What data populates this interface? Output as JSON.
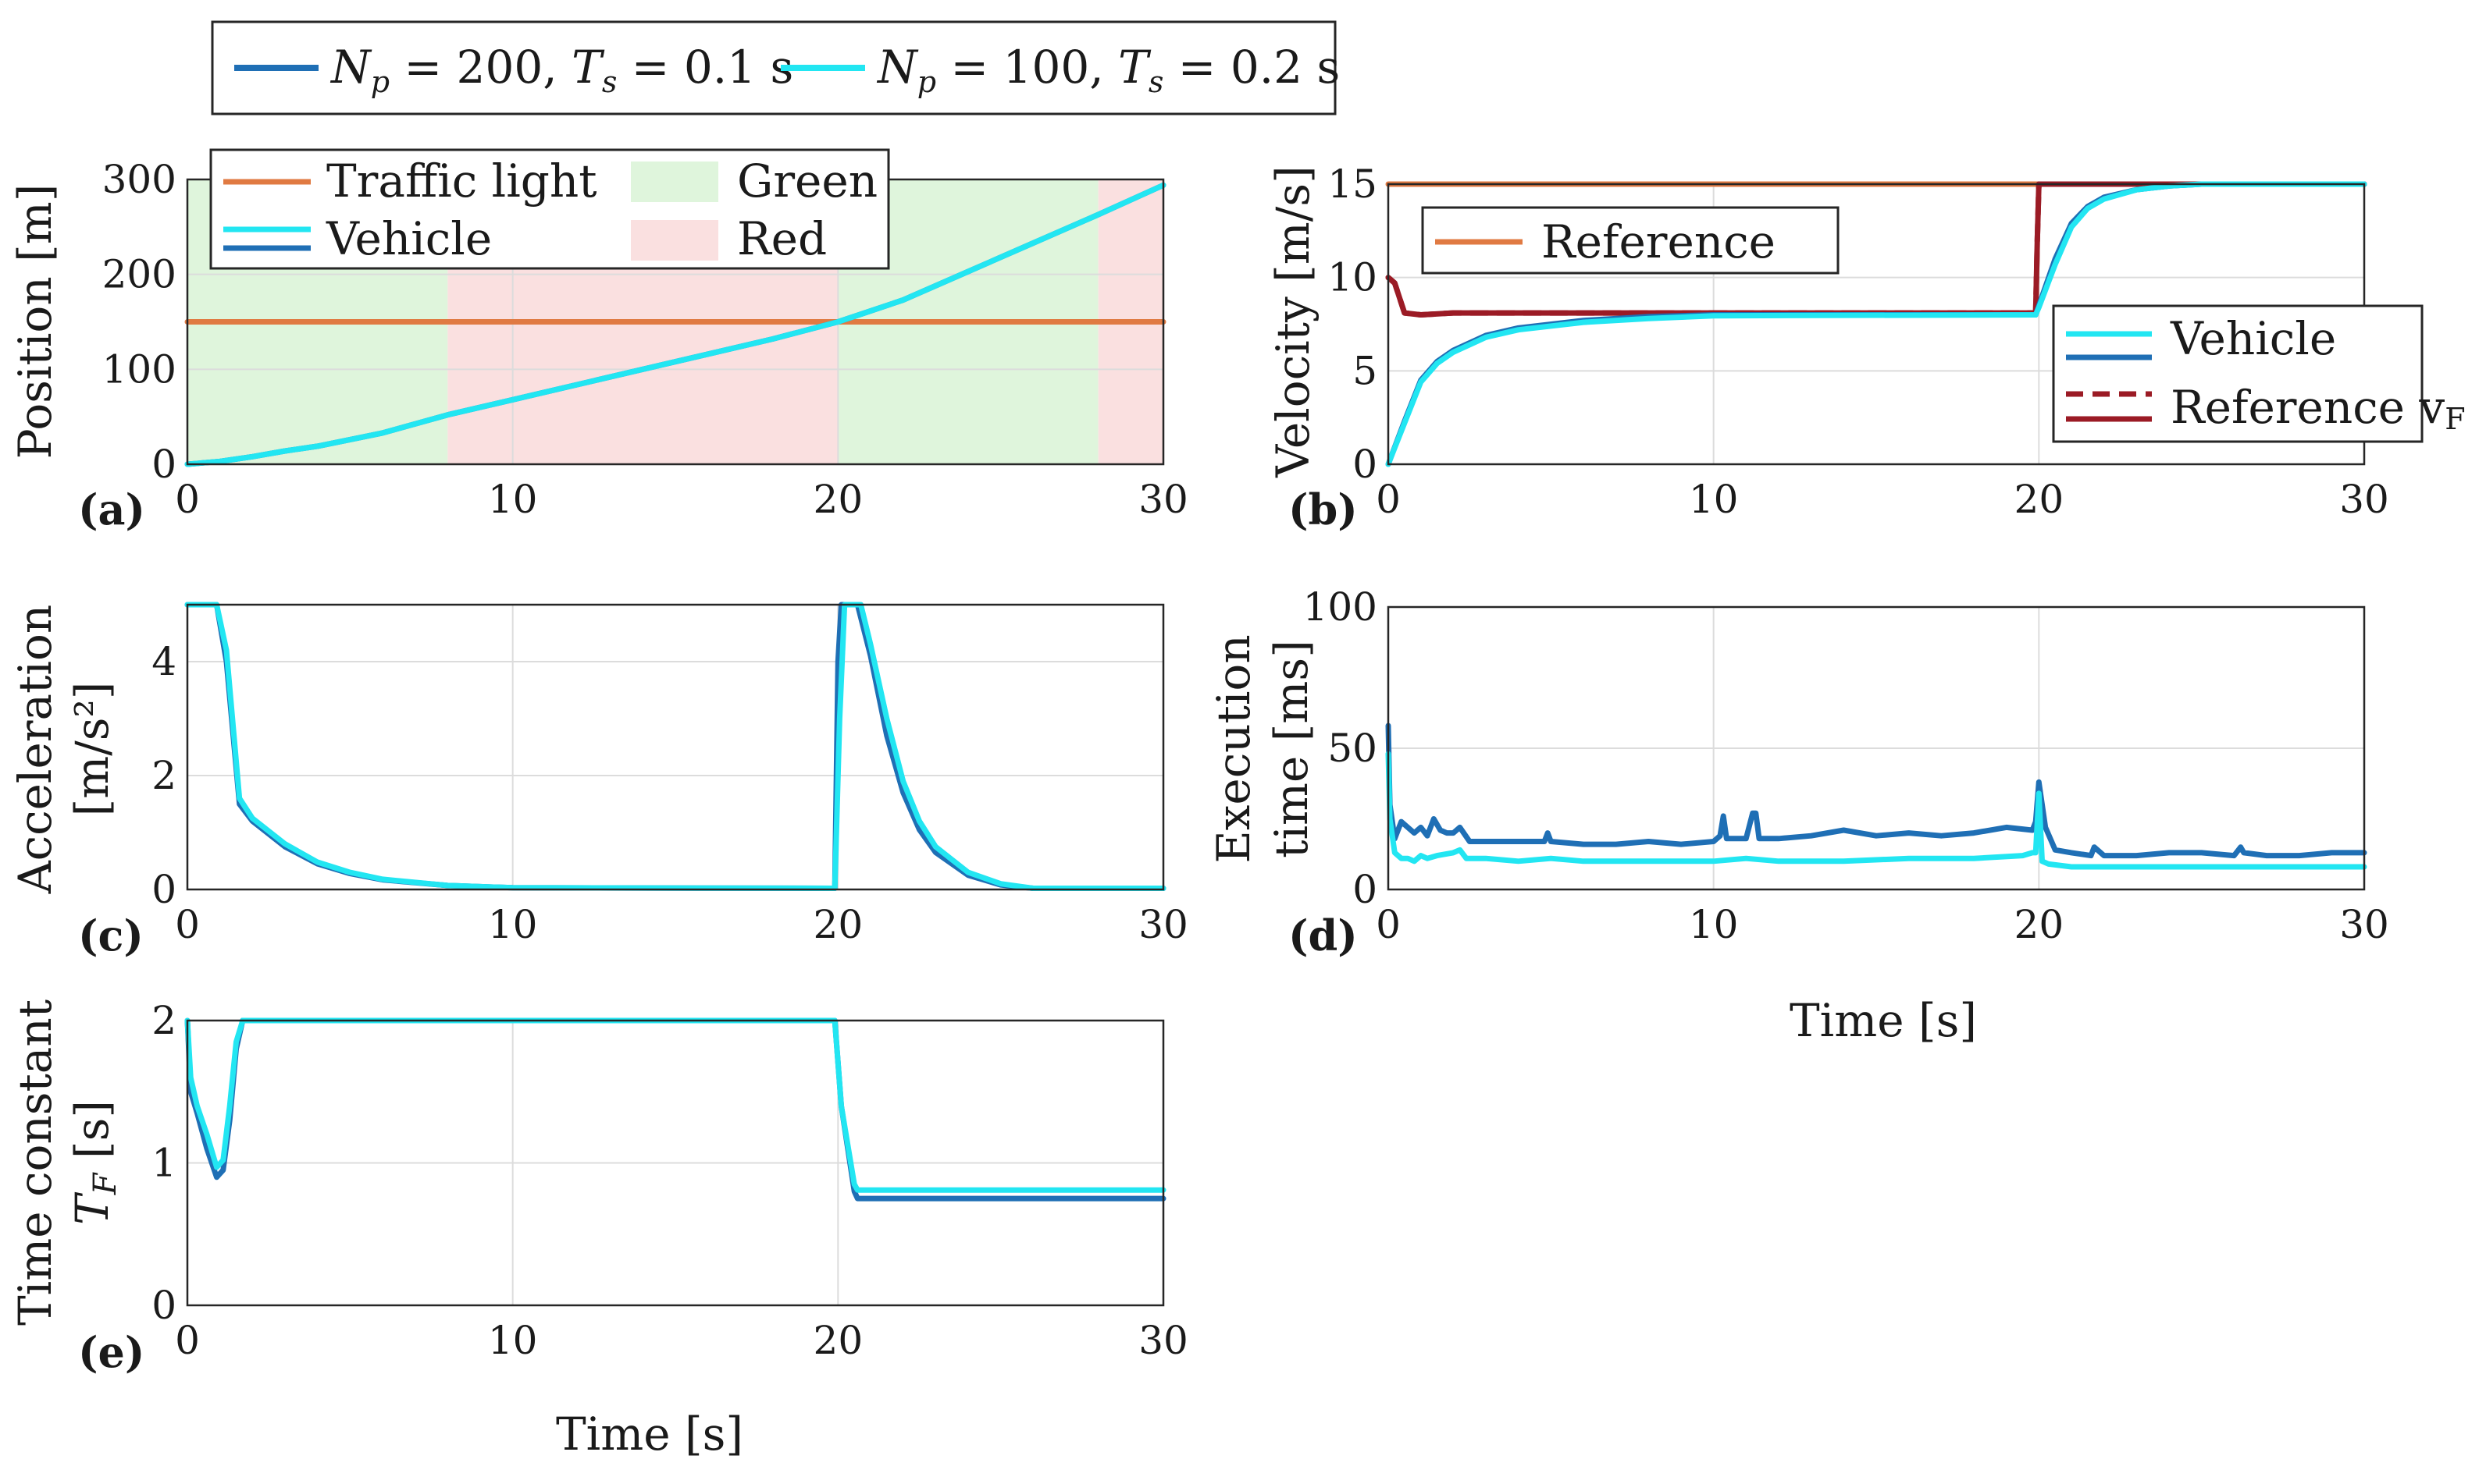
{
  "colors": {
    "np200": "#1f6fb5",
    "np100": "#22e6f2",
    "traffic_light": "#e07a42",
    "green_band": "#dff5dc",
    "red_band": "#fae0e0",
    "reference_vf": "#9b1b25"
  },
  "top_legend": {
    "entries": [
      {
        "label": "Np = 200, Ts = 0.1 s",
        "N": "N",
        "p": "p",
        "eq1": " = 200, ",
        "T": "T",
        "s": "s",
        "eq2": " = 0.1 s",
        "color_key": "np200"
      },
      {
        "label": "Np = 100, Ts = 0.2 s",
        "N": "N",
        "p": "p",
        "eq1": " = 100, ",
        "T": "T",
        "s": "s",
        "eq2": " = 0.2 s",
        "color_key": "np100"
      }
    ]
  },
  "chart_data": [
    {
      "id": "a",
      "panel_label": "(a)",
      "type": "line",
      "ylabel": "Position [m]",
      "xlim": [
        0,
        30
      ],
      "ylim": [
        0,
        300
      ],
      "xticks": [
        "0",
        "10",
        "20",
        "30"
      ],
      "yticks": [
        "0",
        "100",
        "200",
        "300"
      ],
      "bands": [
        {
          "from": 0,
          "to": 8,
          "color_key": "green_band"
        },
        {
          "from": 8,
          "to": 20,
          "color_key": "red_band"
        },
        {
          "from": 20,
          "to": 28,
          "color_key": "green_band"
        },
        {
          "from": 28,
          "to": 30,
          "color_key": "red_band"
        }
      ],
      "legend": {
        "traffic_light": "Traffic light",
        "vehicle": "Vehicle",
        "green": "Green",
        "red": "Red"
      },
      "series": [
        {
          "name": "Traffic light",
          "color_key": "traffic_light",
          "x": [
            0,
            30
          ],
          "y": [
            150,
            150
          ]
        },
        {
          "name": "Vehicle (Np=200)",
          "color_key": "np200",
          "x": [
            0,
            1,
            2,
            3,
            4,
            6,
            8,
            10,
            14,
            18,
            20,
            22,
            24,
            26,
            28,
            30
          ],
          "y": [
            0,
            3,
            8,
            14,
            19,
            33,
            52,
            68,
            100,
            132,
            150,
            173,
            203,
            233,
            263,
            294
          ]
        },
        {
          "name": "Vehicle (Np=100)",
          "color_key": "np100",
          "x": [
            0,
            1,
            2,
            3,
            4,
            6,
            8,
            10,
            14,
            18,
            20,
            22,
            24,
            26,
            28,
            30
          ],
          "y": [
            0,
            3,
            8,
            14,
            19,
            33,
            52,
            68,
            100,
            132,
            150,
            173,
            203,
            233,
            263,
            294
          ]
        }
      ]
    },
    {
      "id": "b",
      "panel_label": "(b)",
      "type": "line",
      "ylabel": "Velocity [m/s]",
      "xlim": [
        0,
        30
      ],
      "ylim": [
        0,
        15
      ],
      "xticks": [
        "0",
        "10",
        "20",
        "30"
      ],
      "yticks": [
        "0",
        "5",
        "10",
        "15"
      ],
      "legend": {
        "reference": "Reference",
        "vehicle": "Vehicle",
        "reference_vf": "Reference v",
        "reference_vf_sub": "F"
      },
      "series": [
        {
          "name": "Reference",
          "color_key": "traffic_light",
          "x": [
            0,
            30
          ],
          "y": [
            15,
            15
          ]
        },
        {
          "name": "Reference vF (Np=100)",
          "color_key": "reference_vf",
          "dashed": true,
          "x": [
            0,
            0.2,
            0.5,
            1,
            2,
            5,
            10,
            15,
            19.9,
            19.95,
            20,
            30
          ],
          "y": [
            10,
            9.7,
            8.1,
            8.0,
            8.1,
            8.1,
            8.1,
            8.1,
            8.1,
            12,
            15,
            15
          ]
        },
        {
          "name": "Reference vF (Np=200)",
          "color_key": "reference_vf",
          "x": [
            0,
            0.2,
            0.5,
            1,
            2,
            5,
            10,
            15,
            19.9,
            19.95,
            20,
            30
          ],
          "y": [
            10,
            9.7,
            8.1,
            8.0,
            8.1,
            8.1,
            8.1,
            8.1,
            8.1,
            12,
            15,
            15
          ]
        },
        {
          "name": "Vehicle (Np=200)",
          "color_key": "np200",
          "x": [
            0,
            0.5,
            1,
            1.5,
            2,
            3,
            4,
            6,
            8,
            10,
            19.9,
            20,
            20.5,
            21,
            21.5,
            22,
            23,
            24,
            25,
            30
          ],
          "y": [
            0,
            2.3,
            4.5,
            5.5,
            6.1,
            6.9,
            7.3,
            7.7,
            7.9,
            8.0,
            8.0,
            8.5,
            11.0,
            12.9,
            13.8,
            14.3,
            14.7,
            14.9,
            15.0,
            15.0
          ]
        },
        {
          "name": "Vehicle (Np=100)",
          "color_key": "np100",
          "x": [
            0,
            0.5,
            1,
            1.5,
            2,
            3,
            4,
            6,
            8,
            10,
            19.9,
            20,
            20.5,
            21,
            21.5,
            22,
            23,
            24,
            25,
            30
          ],
          "y": [
            0,
            2.2,
            4.4,
            5.4,
            6.0,
            6.8,
            7.2,
            7.6,
            7.8,
            7.95,
            8.0,
            8.4,
            10.7,
            12.7,
            13.7,
            14.2,
            14.7,
            14.9,
            15.0,
            15.0
          ]
        }
      ]
    },
    {
      "id": "c",
      "panel_label": "(c)",
      "type": "line",
      "ylabel_lines": [
        "Acceleration",
        "[m/s²]"
      ],
      "xlim": [
        0,
        30
      ],
      "ylim": [
        0,
        5
      ],
      "xticks": [
        "0",
        "10",
        "20",
        "30"
      ],
      "yticks": [
        "0",
        "2",
        "4"
      ],
      "series": [
        {
          "name": "Np=200",
          "color_key": "np200",
          "x": [
            0,
            0.9,
            1.2,
            1.6,
            2,
            3,
            4,
            5,
            6,
            8,
            10,
            19.9,
            20,
            20.1,
            20.6,
            21,
            21.5,
            22,
            22.5,
            23,
            24,
            25,
            26,
            30
          ],
          "y": [
            5,
            5,
            4.0,
            1.5,
            1.2,
            0.75,
            0.45,
            0.28,
            0.17,
            0.07,
            0.03,
            0.02,
            4.0,
            5,
            5,
            4.1,
            2.7,
            1.7,
            1.05,
            0.65,
            0.25,
            0.08,
            0.02,
            0.02
          ]
        },
        {
          "name": "Np=100",
          "color_key": "np100",
          "x": [
            0,
            0.9,
            1.2,
            1.6,
            2,
            3,
            4,
            5,
            6,
            8,
            10,
            19.9,
            20.05,
            20.2,
            20.7,
            21,
            21.5,
            22,
            22.5,
            23,
            24,
            25,
            26,
            30
          ],
          "y": [
            5,
            5,
            4.2,
            1.6,
            1.25,
            0.8,
            0.48,
            0.3,
            0.18,
            0.07,
            0.03,
            0.02,
            3.0,
            5,
            5,
            4.3,
            3.0,
            1.9,
            1.2,
            0.75,
            0.3,
            0.1,
            0.02,
            0.02
          ]
        }
      ]
    },
    {
      "id": "d",
      "panel_label": "(d)",
      "type": "line",
      "ylabel_lines": [
        "Execution",
        "time [ms]"
      ],
      "xlabel": "Time [s]",
      "xlim": [
        0,
        30
      ],
      "ylim": [
        0,
        100
      ],
      "xticks": [
        "0",
        "10",
        "20",
        "30"
      ],
      "yticks": [
        "0",
        "50",
        "100"
      ],
      "series": [
        {
          "name": "Np=200",
          "color_key": "np200",
          "x": [
            0,
            0.05,
            0.2,
            0.4,
            0.6,
            0.8,
            1.0,
            1.2,
            1.4,
            1.6,
            1.8,
            2.0,
            2.2,
            2.5,
            3,
            4,
            4.8,
            4.9,
            5,
            6,
            7,
            8,
            9,
            10,
            10.2,
            10.3,
            10.4,
            11,
            11.2,
            11.3,
            11.4,
            12,
            13,
            14,
            15,
            16,
            17,
            18,
            19,
            19.8,
            19.9,
            20.0,
            20.2,
            20.5,
            21,
            21.6,
            21.7,
            22,
            23,
            24,
            25,
            26,
            26.2,
            26.3,
            27,
            28,
            29,
            30
          ],
          "y": [
            58,
            30,
            18,
            24,
            22,
            20,
            22,
            19,
            25,
            21,
            20,
            20,
            22,
            17,
            17,
            17,
            17,
            20,
            17,
            16,
            16,
            17,
            16,
            17,
            19,
            26,
            18,
            18,
            27,
            27,
            18,
            18,
            19,
            21,
            19,
            20,
            19,
            20,
            22,
            21,
            24,
            38,
            22,
            14,
            13,
            12,
            15,
            12,
            12,
            13,
            13,
            12,
            15,
            13,
            12,
            12,
            13,
            13
          ]
        },
        {
          "name": "Np=100",
          "color_key": "np100",
          "x": [
            0,
            0.05,
            0.2,
            0.4,
            0.6,
            0.8,
            1,
            1.2,
            1.5,
            2,
            2.2,
            2.4,
            3,
            4,
            5,
            6,
            8,
            10,
            11,
            12,
            14,
            16,
            18,
            19.5,
            19.8,
            19.9,
            20.0,
            20.1,
            20.3,
            21,
            22,
            23,
            24,
            26,
            28,
            30
          ],
          "y": [
            48,
            25,
            13,
            11,
            11,
            10,
            12,
            11,
            12,
            13,
            14,
            11,
            11,
            10,
            11,
            10,
            10,
            10,
            11,
            10,
            10,
            11,
            11,
            12,
            13,
            13,
            34,
            10,
            9,
            8,
            8,
            8,
            8,
            8,
            8,
            8
          ]
        }
      ]
    },
    {
      "id": "e",
      "panel_label": "(e)",
      "type": "line",
      "ylabel_lines": [
        "Time constant",
        "T",
        "F",
        " [s]"
      ],
      "xlabel": "Time [s]",
      "xlim": [
        0,
        30
      ],
      "ylim": [
        0,
        2
      ],
      "xticks": [
        "0",
        "10",
        "20",
        "30"
      ],
      "yticks": [
        "0",
        "1",
        "2"
      ],
      "series": [
        {
          "name": "Np=200",
          "color_key": "np200",
          "x": [
            0,
            0.1,
            0.3,
            0.6,
            0.9,
            1.1,
            1.3,
            1.5,
            1.7,
            2,
            10,
            19.9,
            20.1,
            20.5,
            20.6,
            30
          ],
          "y": [
            2,
            1.5,
            1.35,
            1.1,
            0.9,
            0.95,
            1.3,
            1.8,
            2,
            2,
            2,
            2,
            1.4,
            0.8,
            0.75,
            0.75
          ]
        },
        {
          "name": "Np=100",
          "color_key": "np100",
          "x": [
            0,
            0.1,
            0.3,
            0.6,
            0.9,
            1.1,
            1.3,
            1.5,
            1.7,
            2,
            10,
            19.9,
            20.1,
            20.5,
            20.6,
            30
          ],
          "y": [
            2,
            1.6,
            1.4,
            1.2,
            0.97,
            1.02,
            1.4,
            1.85,
            2,
            2,
            2,
            2,
            1.4,
            0.85,
            0.81,
            0.81
          ]
        }
      ]
    }
  ]
}
